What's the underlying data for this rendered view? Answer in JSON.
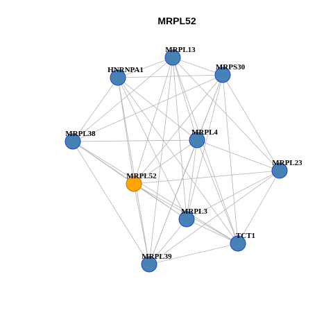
{
  "title": "MRPL52",
  "nodes": [
    {
      "label": "MRPL13"
    },
    {
      "label": "HNRNPA1"
    },
    {
      "label": "MRPS30"
    },
    {
      "label": "MRPL38"
    },
    {
      "label": "MRPL4"
    },
    {
      "label": "MRPL23"
    },
    {
      "label": "MRPL52"
    },
    {
      "label": "MRPL3"
    },
    {
      "label": "TCT1"
    },
    {
      "label": "MRPL39"
    }
  ]
}
